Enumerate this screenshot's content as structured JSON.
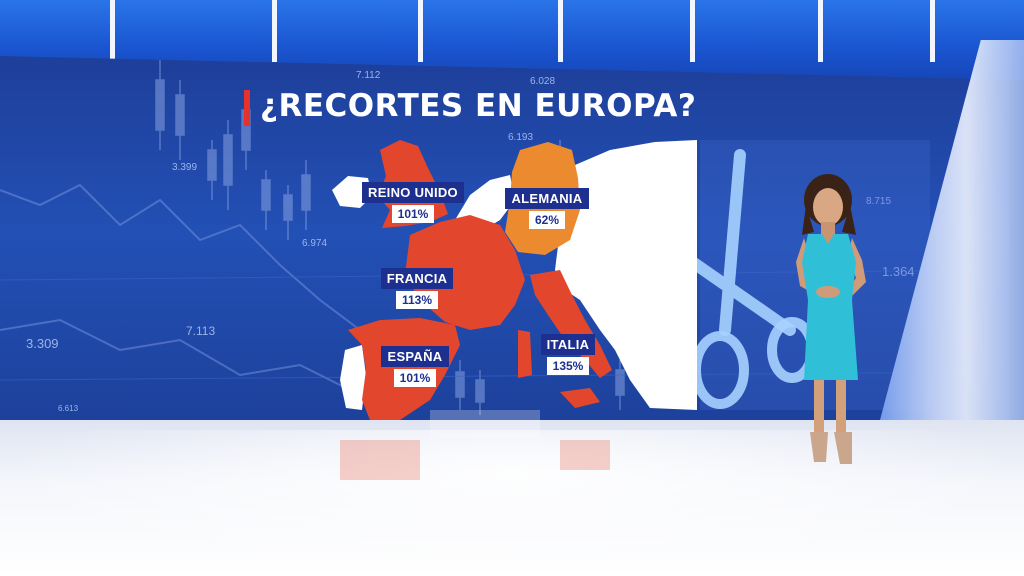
{
  "title": "¿RECORTES EN EUROPA?",
  "colors": {
    "high_debt": "#e2472d",
    "low_debt": "#ec8a2f",
    "neutral": "#ffffff",
    "label_bg": "#1d2f8f",
    "accent": "#e5322d"
  },
  "countries": [
    {
      "name": "REINO UNIDO",
      "value": "101%"
    },
    {
      "name": "ALEMANIA",
      "value": "62%"
    },
    {
      "name": "FRANCIA",
      "value": "113%"
    },
    {
      "name": "ESPAÑA",
      "value": "101%"
    },
    {
      "name": "ITALIA",
      "value": "135%"
    }
  ],
  "background_numbers": [
    "7.112",
    "6.028",
    "6.193",
    "6.974",
    "3.309",
    "7.113",
    "8.715",
    "1.364",
    "3.399",
    "6.613"
  ],
  "icons": [
    "scissors-icon"
  ]
}
